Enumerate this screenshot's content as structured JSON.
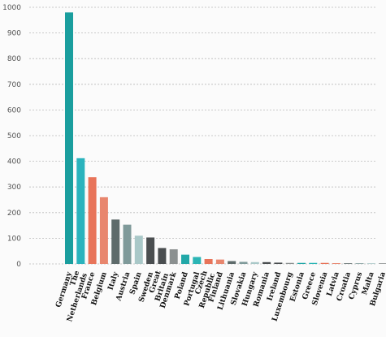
{
  "chart_data": {
    "type": "bar",
    "title": "",
    "xlabel": "",
    "ylabel": "",
    "ylim": [
      0,
      1000
    ],
    "yticks": [
      0,
      100,
      200,
      300,
      400,
      500,
      600,
      700,
      800,
      900,
      1000
    ],
    "grid": true,
    "categories": [
      "Germany",
      "The Netherlands",
      "France",
      "Belgium",
      "Italy",
      "Austria",
      "Spain",
      "Sweden",
      "Great Britain",
      "Denmark",
      "Poland",
      "Portugal",
      "Czech Republic",
      "Finland",
      "Lithuania",
      "Slovakia",
      "Hungary",
      "Romania",
      "Ireland",
      "Luxembourg",
      "Estonia",
      "Greece",
      "Slovenia",
      "Latvia",
      "Croatia",
      "Cyprus",
      "Malta",
      "Bulgaria"
    ],
    "values": [
      980,
      412,
      338,
      260,
      173,
      153,
      110,
      103,
      62,
      57,
      36,
      27,
      19,
      17,
      11,
      8,
      7,
      7,
      5,
      4,
      4,
      4,
      4,
      3,
      2,
      2,
      1,
      1
    ],
    "colors": [
      "#1a9e9e",
      "#2ab3bd",
      "#e8745a",
      "#e8866e",
      "#5e6b6b",
      "#7f9a9a",
      "#a9c8c8",
      "#4a4e50",
      "#4a4e50",
      "#8c9191",
      "#22a8a8",
      "#2bb5b5",
      "#e8745a",
      "#e8866e",
      "#5e6b6b",
      "#7f9a9a",
      "#a9c8c8",
      "#4a4e50",
      "#4a4e50",
      "#8c9191",
      "#22a8a8",
      "#2bb5b5",
      "#e8745a",
      "#e8866e",
      "#5e6b6b",
      "#7f9a9a",
      "#a9c8c8",
      "#8c9191"
    ]
  }
}
